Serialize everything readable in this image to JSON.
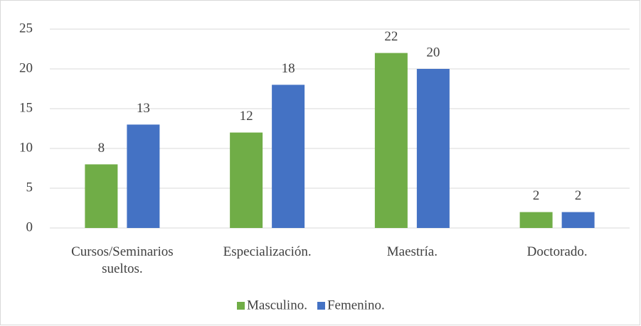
{
  "chart_data": {
    "type": "bar",
    "categories": [
      "Cursos/Seminarios sueltos.",
      "Especialización.",
      "Maestría.",
      "Doctorado."
    ],
    "series": [
      {
        "name": "Masculino.",
        "color": "#70ad47",
        "values": [
          8,
          12,
          22,
          2
        ]
      },
      {
        "name": "Femenino.",
        "color": "#4472c4",
        "values": [
          13,
          18,
          20,
          2
        ]
      }
    ],
    "ylim": [
      0,
      25
    ],
    "yticks": [
      0,
      5,
      10,
      15,
      20,
      25
    ],
    "grid": true,
    "legend": "bottom"
  }
}
